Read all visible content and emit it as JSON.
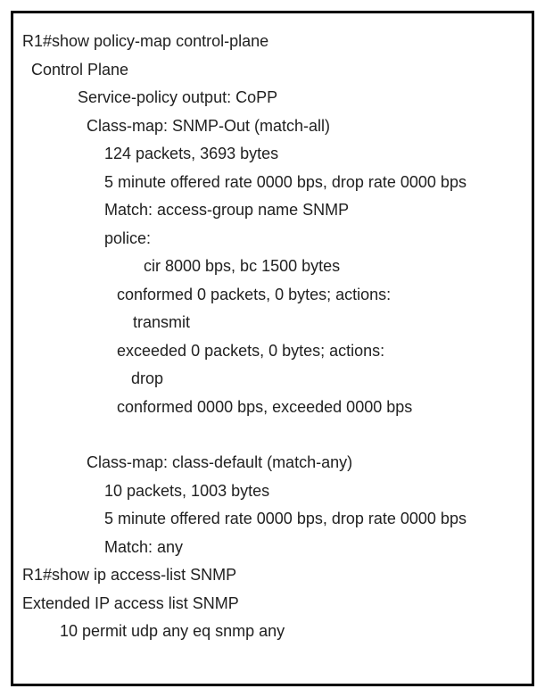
{
  "terminal": {
    "lines": [
      {
        "indent": "indent-0",
        "text": "R1#show policy-map control-plane"
      },
      {
        "indent": "indent-1",
        "text": "Control Plane"
      },
      {
        "indent": "indent-2",
        "text": "Service-policy output: CoPP"
      },
      {
        "indent": "indent-3",
        "text": "Class-map: SNMP-Out (match-all)"
      },
      {
        "indent": "indent-4",
        "text": "124 packets, 3693 bytes"
      },
      {
        "indent": "indent-4",
        "text": "5 minute offered rate 0000 bps, drop rate 0000 bps"
      },
      {
        "indent": "indent-4",
        "text": "Match: access-group name SNMP"
      },
      {
        "indent": "indent-4",
        "text": "police:"
      },
      {
        "indent": "indent-6",
        "text": "cir 8000 bps, bc 1500 bytes"
      },
      {
        "indent": "indent-5",
        "text": "conformed 0 packets, 0 bytes; actions:"
      },
      {
        "indent": "indent-7",
        "text": "transmit"
      },
      {
        "indent": "indent-5",
        "text": "exceeded 0 packets, 0 bytes; actions:"
      },
      {
        "indent": "indent-8",
        "text": "drop"
      },
      {
        "indent": "indent-5",
        "text": "conformed 0000 bps, exceeded 0000 bps"
      },
      {
        "indent": "blank",
        "text": ""
      },
      {
        "indent": "indent-3",
        "text": "Class-map: class-default (match-any)"
      },
      {
        "indent": "indent-4",
        "text": "10 packets, 1003 bytes"
      },
      {
        "indent": "indent-4",
        "text": "5 minute offered rate 0000 bps, drop rate 0000 bps"
      },
      {
        "indent": "indent-4",
        "text": "Match: any"
      },
      {
        "indent": "indent-0",
        "text": "R1#show ip access-list SNMP"
      },
      {
        "indent": "indent-0",
        "text": "Extended IP access list SNMP"
      },
      {
        "indent": "indent-acl",
        "text": "10 permit udp any eq snmp any"
      }
    ]
  },
  "styling": {
    "border_color": "#000000",
    "border_width": 3,
    "text_color": "#212121",
    "background_color": "#ffffff",
    "font_family": "Segoe UI",
    "font_size": 18,
    "line_height": 1.75,
    "container_width": 587,
    "container_height": 757
  }
}
